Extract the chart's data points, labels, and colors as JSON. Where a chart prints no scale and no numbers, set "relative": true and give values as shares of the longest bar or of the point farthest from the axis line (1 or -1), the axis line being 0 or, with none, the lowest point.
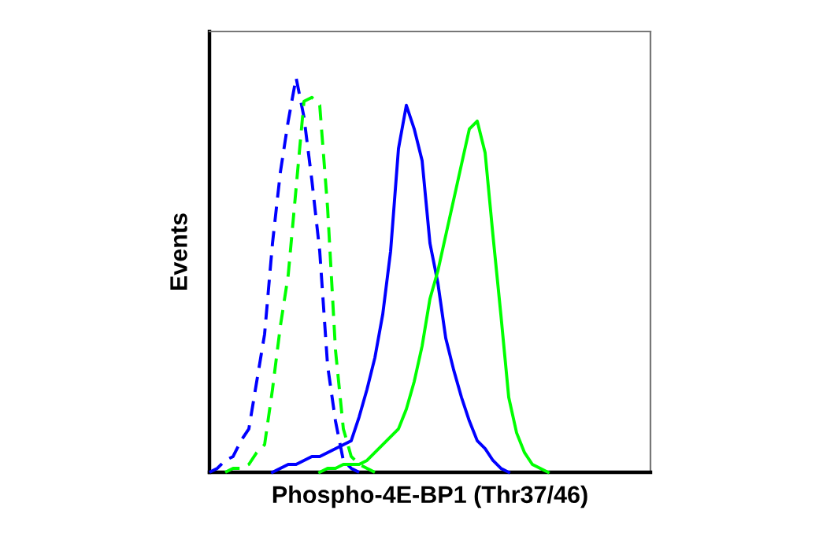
{
  "chart_data": {
    "type": "line",
    "relative": true,
    "xlabel": "Phospho-4E-BP1 (Thr37/46)",
    "ylabel": "Events",
    "tick_labels": false,
    "grid": false,
    "legend": false,
    "marker": "none",
    "categories": [
      null,
      null,
      null,
      null,
      null,
      null,
      null,
      null,
      null,
      null,
      null,
      null,
      null,
      null,
      null,
      null,
      null,
      null,
      null,
      null,
      null,
      null,
      null,
      null,
      null,
      null,
      null,
      null,
      null,
      null,
      null,
      null,
      null,
      null,
      null,
      null,
      null,
      null,
      null,
      null,
      null,
      null,
      null,
      null,
      null,
      null,
      null,
      null,
      null,
      null,
      null,
      null,
      null,
      null,
      null,
      null,
      null
    ],
    "series": [
      {
        "color": "#0000ff",
        "line_style": "dashed",
        "values": [
          0,
          0.01,
          0.03,
          0.04,
          0.08,
          0.11,
          0.23,
          0.35,
          0.58,
          0.76,
          0.89,
          1,
          0.9,
          0.74,
          0.56,
          0.27,
          0.13,
          0.03,
          0.01,
          0,
          null,
          null,
          null,
          null,
          null,
          null,
          null,
          null,
          null,
          null,
          null,
          null,
          null,
          null,
          null,
          null,
          null,
          null,
          null,
          null,
          null,
          null,
          null,
          null,
          null,
          null,
          null,
          null,
          null,
          null,
          null,
          null,
          null,
          null,
          null,
          null,
          null
        ]
      },
      {
        "color": "#00ff00",
        "line_style": "dashed",
        "values": [
          null,
          null,
          0,
          0.01,
          0.01,
          0.02,
          0.05,
          0.07,
          0.21,
          0.37,
          0.5,
          0.72,
          0.94,
          0.95,
          0.93,
          0.67,
          0.31,
          0.11,
          0.04,
          0.02,
          0.01,
          0,
          null,
          null,
          null,
          null,
          null,
          null,
          null,
          null,
          null,
          null,
          null,
          null,
          null,
          null,
          null,
          null,
          null,
          null,
          null,
          null,
          null,
          null,
          null,
          null,
          null,
          null,
          null,
          null,
          null,
          null,
          null,
          null,
          null,
          null,
          null
        ]
      },
      {
        "color": "#0000ff",
        "line_style": "solid",
        "values": [
          null,
          null,
          null,
          null,
          null,
          null,
          null,
          null,
          0,
          0.01,
          0.02,
          0.02,
          0.03,
          0.04,
          0.04,
          0.05,
          0.06,
          0.07,
          0.08,
          0.14,
          0.21,
          0.29,
          0.4,
          0.56,
          0.82,
          0.93,
          0.87,
          0.79,
          0.58,
          0.48,
          0.34,
          0.26,
          0.19,
          0.13,
          0.08,
          0.06,
          0.03,
          0.01,
          0,
          null,
          null,
          null,
          null,
          null,
          null,
          null,
          null,
          null,
          null,
          null,
          null,
          null,
          null,
          null,
          null,
          null,
          null
        ]
      },
      {
        "color": "#00ff00",
        "line_style": "solid",
        "values": [
          null,
          null,
          null,
          null,
          null,
          null,
          null,
          null,
          null,
          null,
          null,
          null,
          null,
          null,
          0,
          0.01,
          0.01,
          0.02,
          0.02,
          0.02,
          0.03,
          0.05,
          0.07,
          0.09,
          0.11,
          0.16,
          0.23,
          0.32,
          0.44,
          0.51,
          0.6,
          0.69,
          0.78,
          0.87,
          0.89,
          0.81,
          0.6,
          0.4,
          0.19,
          0.1,
          0.05,
          0.02,
          0.01,
          0,
          null,
          null,
          null,
          null,
          null,
          null,
          null,
          null,
          null,
          null,
          null,
          null,
          null
        ]
      }
    ]
  }
}
